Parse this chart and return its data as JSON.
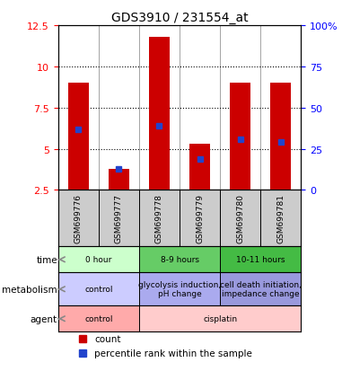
{
  "title": "GDS3910 / 231554_at",
  "samples": [
    "GSM699776",
    "GSM699777",
    "GSM699778",
    "GSM699779",
    "GSM699780",
    "GSM699781"
  ],
  "bar_bottoms": [
    2.5,
    2.5,
    2.5,
    2.5,
    2.5,
    2.5
  ],
  "bar_tops": [
    9.0,
    3.8,
    11.8,
    5.3,
    9.0,
    9.0
  ],
  "blue_marks": [
    6.2,
    3.8,
    6.4,
    4.4,
    5.6,
    5.4
  ],
  "bar_color": "#cc0000",
  "blue_color": "#2244cc",
  "ylim_left": [
    2.5,
    12.5
  ],
  "ylim_right": [
    0,
    100
  ],
  "yticks_left": [
    2.5,
    5.0,
    7.5,
    10.0,
    12.5
  ],
  "ytick_labels_left": [
    "2.5",
    "5",
    "7.5",
    "10",
    "12.5"
  ],
  "yticks_right": [
    0,
    25,
    50,
    75,
    100
  ],
  "ytick_labels_right": [
    "0",
    "25",
    "50",
    "75",
    "100%"
  ],
  "dotted_lines": [
    5.0,
    7.5,
    10.0
  ],
  "time_groups": [
    {
      "label": "0 hour",
      "cols": [
        0,
        1
      ],
      "color": "#ccffcc"
    },
    {
      "label": "8-9 hours",
      "cols": [
        2,
        3
      ],
      "color": "#66cc66"
    },
    {
      "label": "10-11 hours",
      "cols": [
        4,
        5
      ],
      "color": "#44bb44"
    }
  ],
  "metabolism_groups": [
    {
      "label": "control",
      "cols": [
        0,
        1
      ],
      "color": "#ccccff"
    },
    {
      "label": "glycolysis induction,\npH change",
      "cols": [
        2,
        3
      ],
      "color": "#aaaaee"
    },
    {
      "label": "cell death initiation,\nimpedance change",
      "cols": [
        4,
        5
      ],
      "color": "#9999dd"
    }
  ],
  "agent_groups": [
    {
      "label": "control",
      "cols": [
        0,
        1
      ],
      "color": "#ffaaaa"
    },
    {
      "label": "cisplatin",
      "cols": [
        2,
        3,
        4,
        5
      ],
      "color": "#ffcccc"
    }
  ],
  "row_labels": [
    "time",
    "metabolism",
    "agent"
  ],
  "legend_count_color": "#cc0000",
  "legend_pct_color": "#2244cc",
  "grid_color": "#888888",
  "axis_spine_color": "#000000",
  "bar_width": 0.5
}
